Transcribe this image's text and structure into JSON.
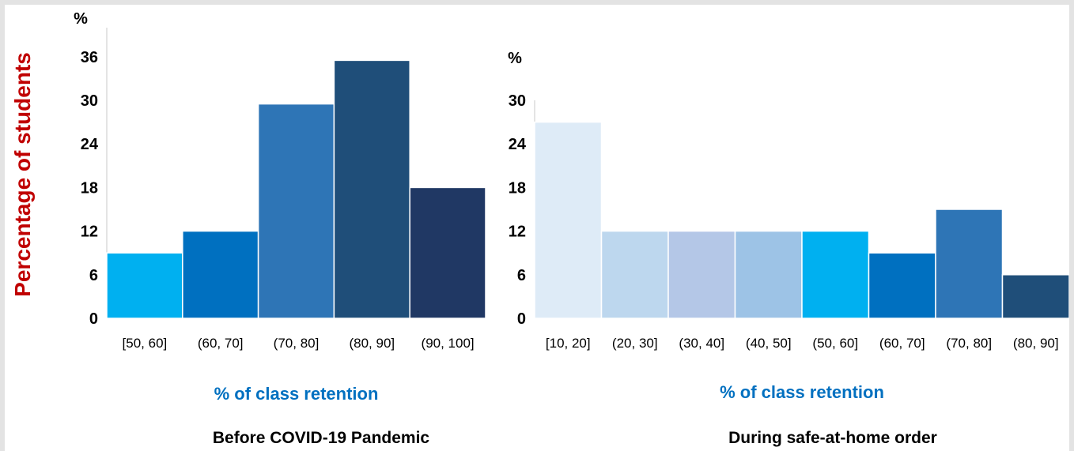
{
  "y_axis_label": "Percentage of students",
  "colors": {
    "ylabel": "#c00000",
    "xlabel": "#0070c0",
    "axis": "#c9c9c9"
  },
  "chart_data": [
    {
      "type": "bar",
      "title": "Before COVID-19 Pandemic",
      "xlabel": "% of class retention",
      "yunit": "%",
      "ylim": [
        0,
        40
      ],
      "yticks": [
        0,
        6,
        12,
        18,
        24,
        30,
        36
      ],
      "grid": false,
      "categories": [
        "[50, 60]",
        "(60, 70]",
        "(70, 80]",
        "(80, 90]",
        "(90, 100]"
      ],
      "values": [
        9,
        12,
        29.5,
        35.5,
        18
      ],
      "colors": [
        "#00b0f0",
        "#0070c0",
        "#2e75b6",
        "#1f4e79",
        "#203864"
      ]
    },
    {
      "type": "bar",
      "title": "During safe-at-home order",
      "xlabel": "% of class retention",
      "yunit": "%",
      "ylim": [
        0,
        30
      ],
      "yticks": [
        0,
        6,
        12,
        18,
        24,
        30
      ],
      "grid": false,
      "categories": [
        "[10, 20]",
        "(20, 30]",
        "(30, 40]",
        "(40, 50]",
        "(50, 60]",
        "(60, 70]",
        "(70, 80]",
        "(80, 90]"
      ],
      "values": [
        27,
        12,
        12,
        12,
        12,
        9,
        15,
        6
      ],
      "colors": [
        "#deebf7",
        "#bdd7ee",
        "#b4c7e7",
        "#9dc3e6",
        "#00b0f0",
        "#0070c0",
        "#2e75b6",
        "#1f4e79"
      ]
    }
  ]
}
